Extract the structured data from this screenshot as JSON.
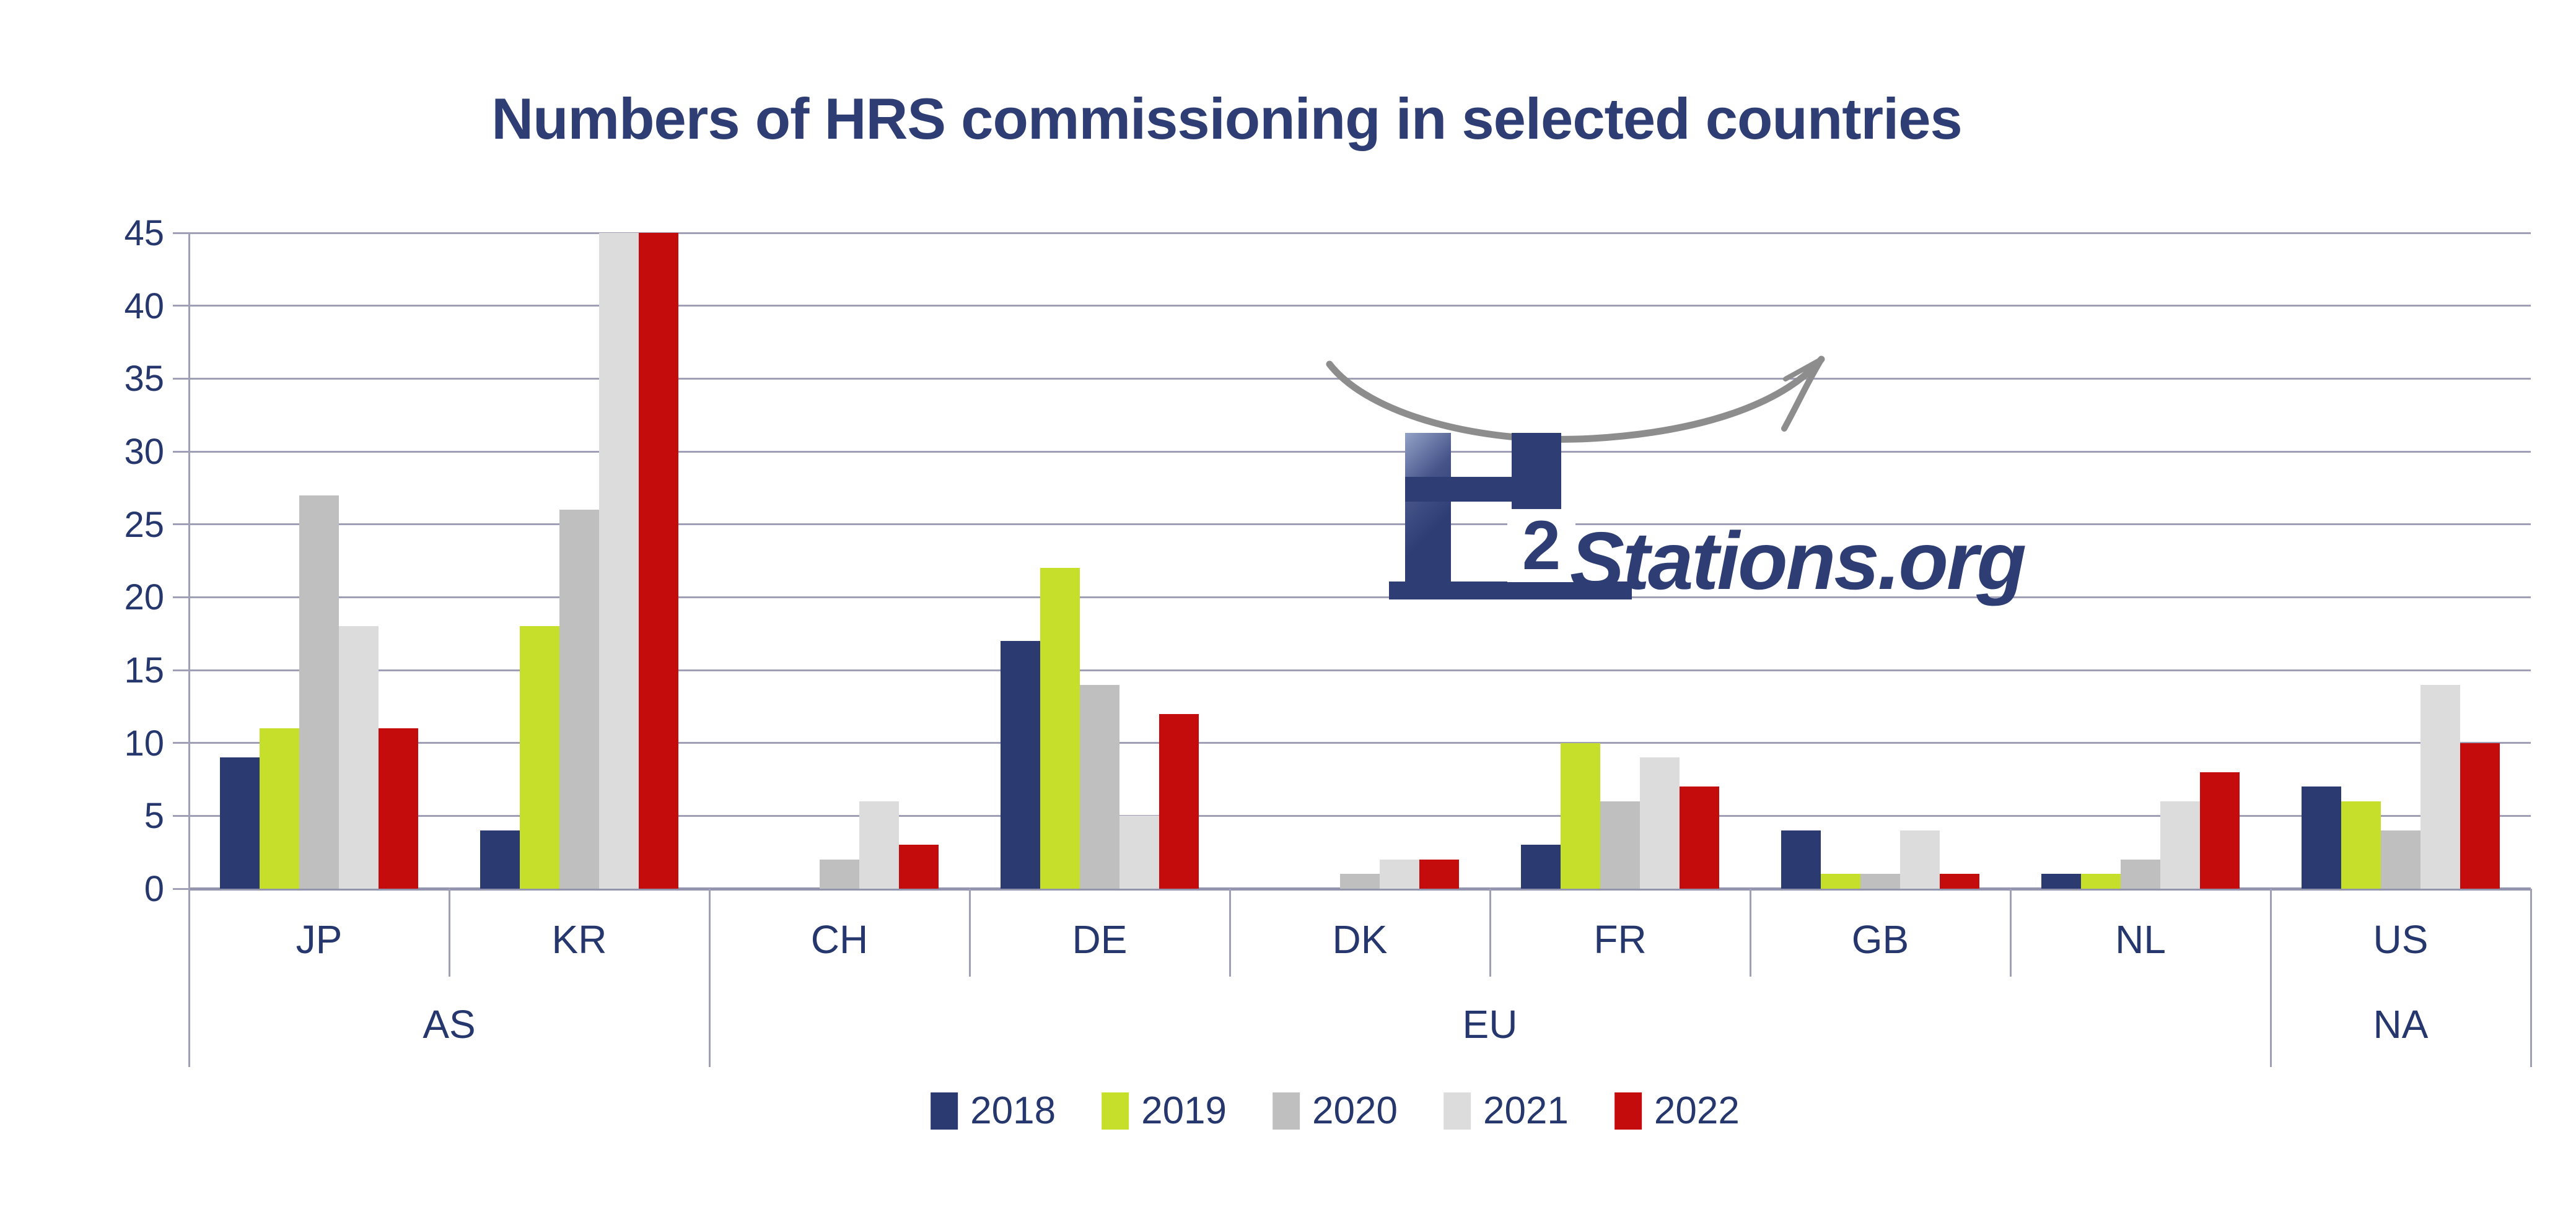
{
  "title": "Numbers of HRS commissioning in selected countries",
  "logo": {
    "h_letter": "H",
    "subscript": "2",
    "wordmark": "Stations.org"
  },
  "colors": {
    "navy_text": "#26376e",
    "title_navy": "#2e3d74",
    "gridline": "#9fa0b8",
    "logo_navy": "#2e3e74",
    "arrow_gray": "#8d8d8d",
    "series": [
      "#2b3a70",
      "#c5df2b",
      "#bfbfbf",
      "#dcdcdc",
      "#c50c0c"
    ]
  },
  "legend": {
    "entries": [
      "2018",
      "2019",
      "2020",
      "2021",
      "2022"
    ],
    "position": "bottom-center"
  },
  "chart_data": {
    "type": "bar",
    "title": "Numbers of HRS commissioning in selected countries",
    "xlabel": "",
    "ylabel": "",
    "ylim": [
      0,
      45
    ],
    "yticks": [
      0,
      5,
      10,
      15,
      20,
      25,
      30,
      35,
      40,
      45
    ],
    "grid": true,
    "legend_position": "bottom",
    "series_names": [
      "2018",
      "2019",
      "2020",
      "2021",
      "2022"
    ],
    "series_colors": [
      "#2b3a70",
      "#c5df2b",
      "#bfbfbf",
      "#dcdcdc",
      "#c50c0c"
    ],
    "groups": [
      {
        "country": "JP",
        "region": "AS",
        "values": [
          9,
          11,
          27,
          18,
          11
        ]
      },
      {
        "country": "KR",
        "region": "AS",
        "values": [
          4,
          18,
          26,
          45,
          45
        ]
      },
      {
        "country": "CH",
        "region": "EU",
        "values": [
          0,
          0,
          2,
          6,
          3
        ]
      },
      {
        "country": "DE",
        "region": "EU",
        "values": [
          17,
          22,
          14,
          5,
          12
        ]
      },
      {
        "country": "DK",
        "region": "EU",
        "values": [
          0,
          0,
          1,
          2,
          2
        ]
      },
      {
        "country": "FR",
        "region": "EU",
        "values": [
          3,
          10,
          6,
          9,
          7
        ]
      },
      {
        "country": "GB",
        "region": "EU",
        "values": [
          4,
          1,
          1,
          4,
          1
        ]
      },
      {
        "country": "NL",
        "region": "EU",
        "values": [
          1,
          1,
          2,
          6,
          8
        ]
      },
      {
        "country": "US",
        "region": "NA",
        "values": [
          7,
          6,
          4,
          14,
          10
        ]
      }
    ],
    "regions": [
      {
        "label": "AS",
        "span": 2
      },
      {
        "label": "EU",
        "span": 6
      },
      {
        "label": "NA",
        "span": 1
      }
    ]
  }
}
